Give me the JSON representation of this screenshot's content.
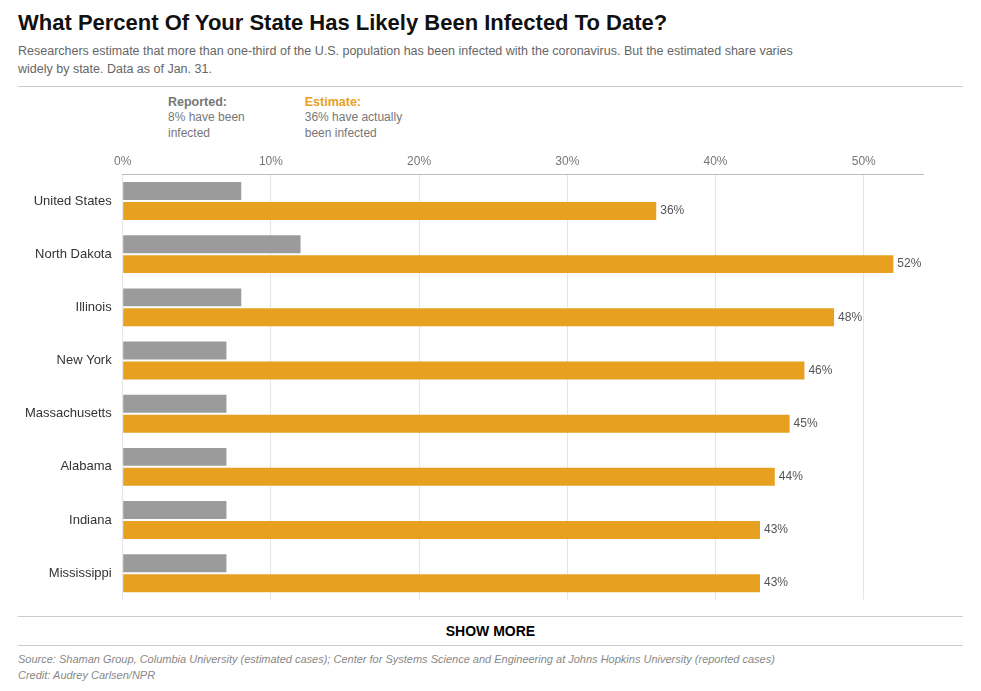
{
  "chart_data": {
    "type": "bar",
    "orientation": "horizontal",
    "title": "What Percent Of Your State Has Likely Been Infected To Date?",
    "subtitle": "Researchers estimate that more than one-third of the U.S. population has been infected with the coronavirus. But the estimated share varies\nwidely by state. Data as of Jan. 31.",
    "categories": [
      "United States",
      "North Dakota",
      "Illinois",
      "New York",
      "Massachusetts",
      "Alabama",
      "Indiana",
      "Mississippi"
    ],
    "series": [
      {
        "color": "#9B9B9B",
        "values": [
          8,
          12,
          8,
          7,
          7,
          7,
          7,
          7
        ]
      },
      {
        "color": "#E8A020",
        "values": [
          36,
          52,
          48,
          46,
          45,
          44,
          43,
          43
        ],
        "data_labels": true,
        "value_labels": [
          "36%",
          "52%",
          "48%",
          "46%",
          "45%",
          "44%",
          "43%",
          "43%"
        ]
      }
    ],
    "xlim": [
      0,
      54
    ],
    "xticks": [
      {
        "value": 0,
        "label": "0%"
      },
      {
        "value": 10,
        "label": "10%"
      },
      {
        "value": 20,
        "label": "20%"
      },
      {
        "value": 30,
        "label": "30%"
      },
      {
        "value": 40,
        "label": "40%"
      },
      {
        "value": 50,
        "label": "50%"
      }
    ],
    "grid": true,
    "annotations": [
      {
        "title": "Reported:",
        "text": "8% have been\ninfected",
        "color": "#777777"
      },
      {
        "title": "Estimate:",
        "text": "36% have actually\nbeen infected",
        "color": "#E8A020"
      }
    ],
    "button": "SHOW MORE",
    "source": "Source: Shaman Group, Columbia University (estimated cases); Center for Systems Science and Engineering at Johns Hopkins University (reported cases)\nCredit: Audrey Carlsen/NPR"
  }
}
